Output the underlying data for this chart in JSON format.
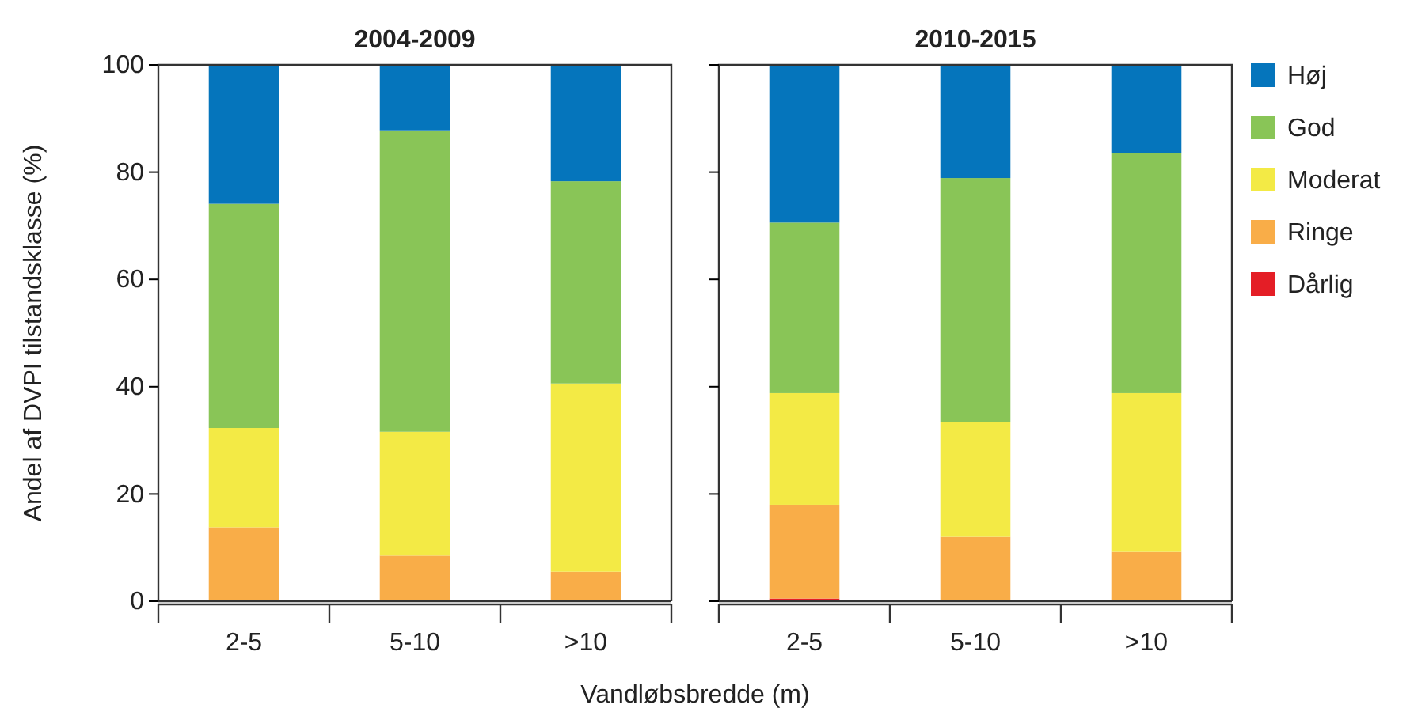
{
  "chart_data": [
    {
      "type": "bar",
      "stacked": true,
      "title": "2004-2009",
      "ylabel": "Andel af DVPI tilstandsklasse (%)",
      "categories": [
        "2-5",
        "5-10",
        ">10"
      ],
      "ylim": [
        0,
        100
      ],
      "yticks": [
        0,
        20,
        40,
        60,
        80,
        100
      ],
      "series": [
        {
          "color": "#e41e26",
          "values": [
            0,
            0,
            0
          ]
        },
        {
          "color": "#f9ad48",
          "values": [
            13.8,
            8.5,
            5.5
          ]
        },
        {
          "color": "#f3ea45",
          "values": [
            18.5,
            23.1,
            35.1
          ]
        },
        {
          "color": "#89c557",
          "values": [
            41.8,
            56.2,
            37.7
          ]
        },
        {
          "color": "#0575bc",
          "values": [
            25.9,
            12.2,
            21.7
          ]
        }
      ]
    },
    {
      "type": "bar",
      "stacked": true,
      "title": "2010-2015",
      "xlabel": "Vandløbsbredde (m)",
      "categories": [
        "2-5",
        "5-10",
        ">10"
      ],
      "ylim": [
        0,
        100
      ],
      "yticks": [
        0,
        20,
        40,
        60,
        80,
        100
      ],
      "tick_labels": "x",
      "legend": "right",
      "series": [
        {
          "name": "Dårlig",
          "color": "#e41e26",
          "values": [
            0.5,
            0,
            0
          ]
        },
        {
          "name": "Ringe",
          "color": "#f9ad48",
          "values": [
            17.5,
            12.0,
            9.2
          ]
        },
        {
          "name": "Moderat",
          "color": "#f3ea45",
          "values": [
            20.8,
            21.4,
            29.6
          ]
        },
        {
          "name": "God",
          "color": "#89c557",
          "values": [
            31.8,
            45.5,
            44.8
          ]
        },
        {
          "name": "Høj",
          "color": "#0575bc",
          "values": [
            29.4,
            21.1,
            16.4
          ]
        }
      ]
    }
  ]
}
